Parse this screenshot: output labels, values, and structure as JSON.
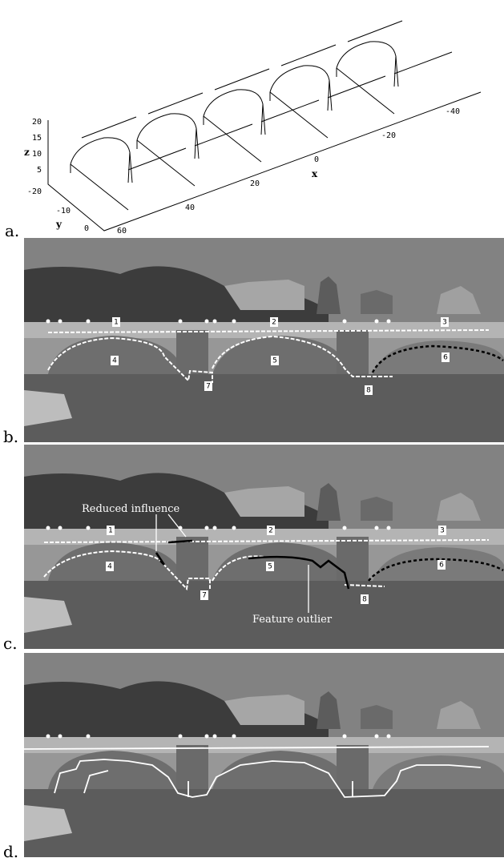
{
  "plot": {
    "axis_labels": {
      "x": "x",
      "y": "y",
      "z": "z"
    },
    "z_ticks": [
      20,
      15,
      10,
      5
    ],
    "y_ticks": [
      -20,
      -10,
      0
    ],
    "x_ticks": [
      60,
      40,
      20,
      0,
      -20,
      -40
    ]
  },
  "panels": [
    {
      "label": "a."
    },
    {
      "label": "b.",
      "markers": [
        1,
        2,
        3,
        4,
        5,
        6,
        7,
        8
      ]
    },
    {
      "label": "c.",
      "markers": [
        1,
        2,
        3,
        4,
        5,
        6,
        7,
        8
      ],
      "annotations": [
        "Reduced influence",
        "Feature outlier"
      ]
    },
    {
      "label": "d."
    }
  ]
}
